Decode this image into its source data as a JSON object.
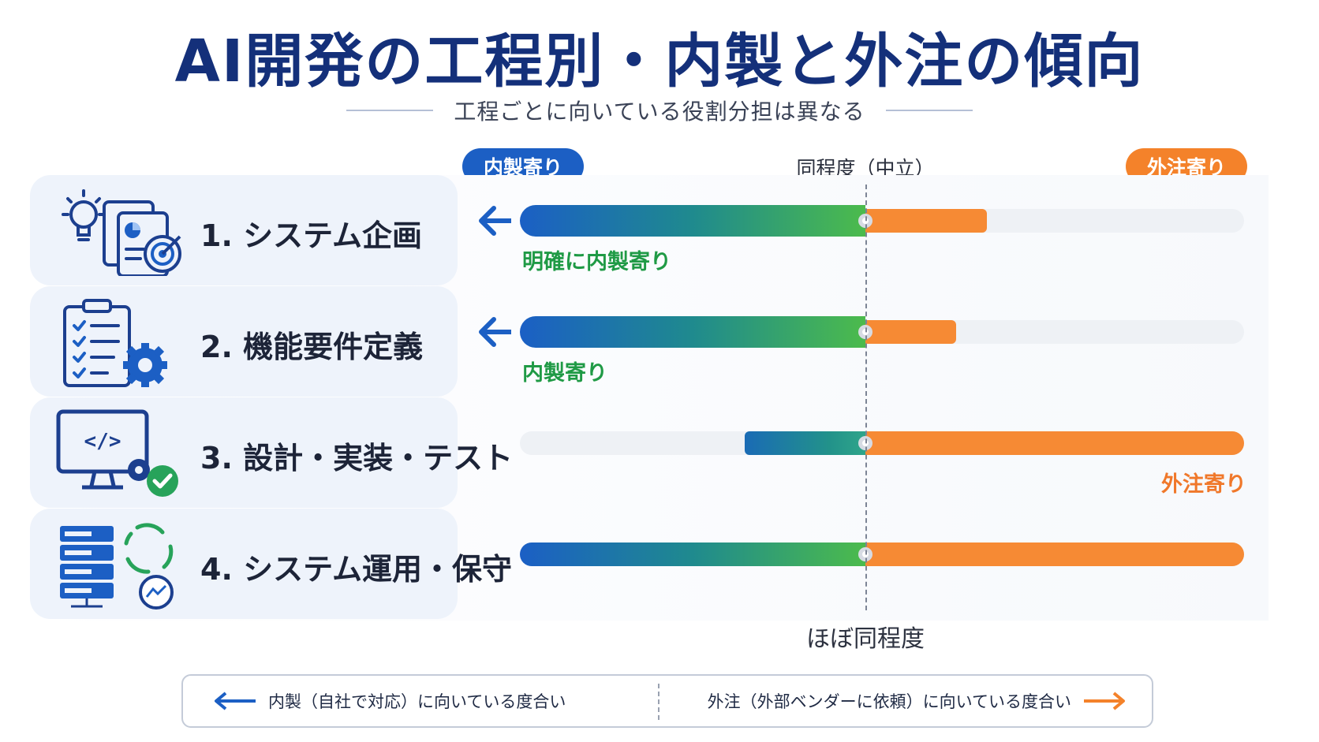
{
  "title": "AI開発の工程別・内製と外注の傾向",
  "subtitle": "工程ごとに向いている役割分担は異なる",
  "scale": {
    "left_label": "内製寄り",
    "center_label": "同程度（中立）",
    "right_label": "外注寄り",
    "colors": {
      "inhouse": "#1c5fc4",
      "outsource": "#f4822a",
      "inhouse_tag": "#1f9a45"
    }
  },
  "chart_data": {
    "type": "bar",
    "categories": [
      "1. システム企画",
      "2. 機能要件定義",
      "3. 設計・実装・テスト",
      "4. システム運用・保守"
    ],
    "series": [
      {
        "name": "内製寄り",
        "values": [
          1.0,
          1.0,
          0.35,
          1.0
        ]
      },
      {
        "name": "外注寄り",
        "values": [
          0.32,
          0.24,
          1.0,
          1.0
        ]
      }
    ],
    "verdicts": [
      "明確に内製寄り",
      "内製寄り",
      "外注寄り",
      "ほぼ同程度"
    ],
    "verdict_side": [
      "left",
      "left",
      "right",
      "center"
    ],
    "arrow": [
      true,
      true,
      false,
      false
    ],
    "icons": [
      "lightbulb-document-target-icon",
      "clipboard-checklist-gear-icon",
      "monitor-code-check-icon",
      "server-cycle-monitoring-icon"
    ]
  },
  "legend": {
    "left": "内製（自社で対応）に向いている度合い",
    "right": "外注（外部ベンダーに依頼）に向いている度合い"
  }
}
